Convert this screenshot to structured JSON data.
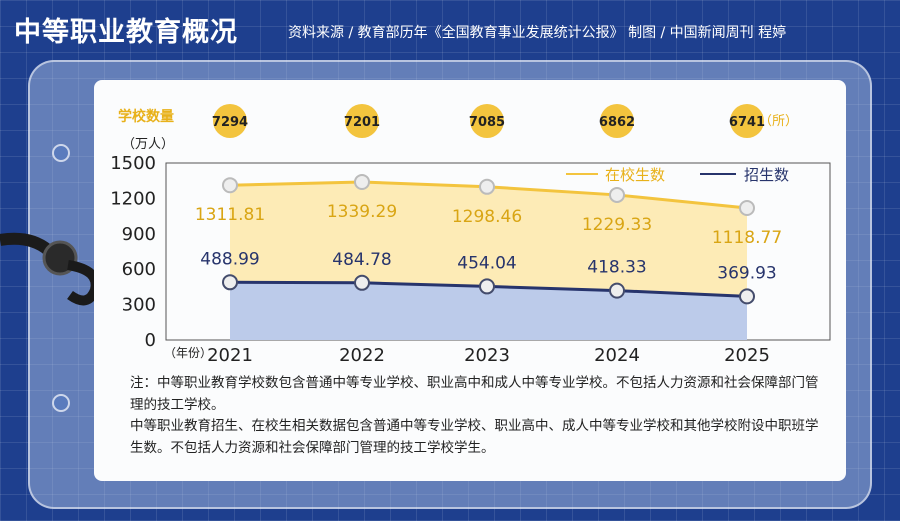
{
  "header": {
    "title": "中等职业教育概况",
    "source": "资料来源 / 教育部历年《全国教育事业发展统计公报》 制图 / 中国新闻周刊  程婷"
  },
  "chart_data": {
    "type": "line",
    "x": [
      "2021",
      "2022",
      "2023",
      "2024",
      "2025"
    ],
    "x_unit": "（年份）",
    "y_unit": "（万人）",
    "ylim": [
      0,
      1500
    ],
    "yticks": [
      0,
      300,
      600,
      900,
      1200,
      1500
    ],
    "series": [
      {
        "name": "在校生数",
        "values": [
          1311.81,
          1339.29,
          1298.46,
          1229.33,
          1118.77
        ],
        "color": "#f3c43e"
      },
      {
        "name": "招生数",
        "values": [
          488.99,
          484.78,
          454.04,
          418.33,
          369.93
        ],
        "color": "#27346c"
      }
    ],
    "schools": {
      "label": "学校数量",
      "unit": "（所）",
      "values": [
        7294,
        7201,
        7085,
        6862,
        6741
      ],
      "color": "#f3c43e"
    },
    "legend_position": "top-right",
    "grid": false
  },
  "notes": [
    "注：中等职业教育学校数包含普通中等专业学校、职业高中和成人中等专业学校。不包括人力资源和社会保障部门管理的技工学校。",
    "中等职业教育招生、在校生相关数据包含普通中等专业学校、职业高中、成人中等专业学校和其他学校附设中职班学生数。不包括人力资源和社会保障部门管理的技工学校学生。"
  ]
}
